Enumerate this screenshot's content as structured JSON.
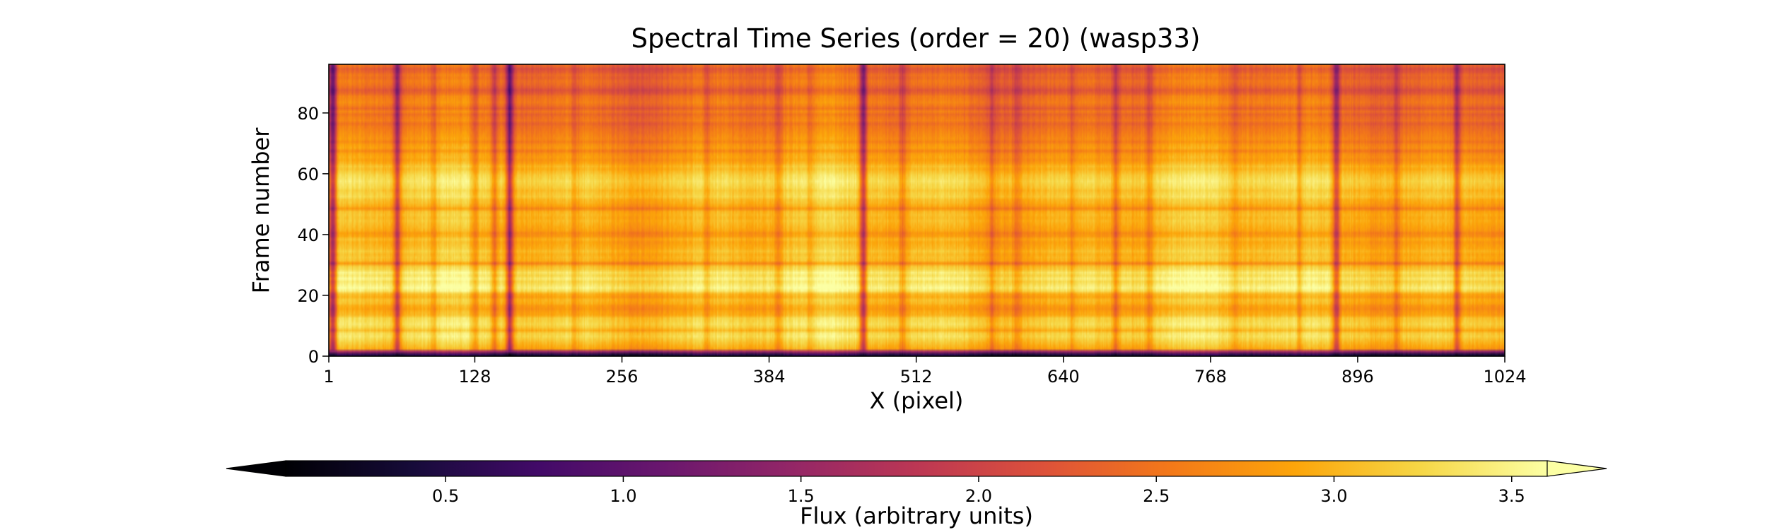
{
  "chart_data": {
    "type": "heatmap",
    "title": "Spectral Time Series (order = 20) (wasp33)",
    "xlabel": "X (pixel)",
    "ylabel": "Frame number",
    "xlim": [
      1,
      1024
    ],
    "ylim": [
      0,
      96
    ],
    "xticks": [
      1,
      128,
      256,
      384,
      512,
      640,
      768,
      896,
      1024
    ],
    "xtick_labels": [
      "1",
      "128",
      "256",
      "384",
      "512",
      "640",
      "768",
      "896",
      "1024"
    ],
    "yticks": [
      0,
      20,
      40,
      60,
      80
    ],
    "ytick_labels": [
      "0",
      "20",
      "40",
      "60",
      "80"
    ],
    "colormap": "inferno",
    "colorbar": {
      "label": "Flux (arbitrary units)",
      "orientation": "horizontal",
      "placement": "bottom",
      "range": [
        0.05,
        3.6
      ],
      "ticks": [
        0.5,
        1.0,
        1.5,
        2.0,
        2.5,
        3.0,
        3.5
      ],
      "tick_labels": [
        "0.5",
        "1.0",
        "1.5",
        "2.0",
        "2.5",
        "3.0",
        "3.5"
      ],
      "extend": "both"
    },
    "frames": 96,
    "pixels": 1024,
    "frame_levels": [
      0.5,
      1.5,
      2.9,
      3.0,
      3.1,
      3.2,
      3.3,
      3.25,
      3.0,
      3.2,
      3.3,
      3.25,
      3.2,
      2.95,
      2.9,
      2.8,
      2.85,
      3.0,
      3.05,
      2.9,
      3.0,
      3.35,
      3.5,
      3.4,
      3.3,
      3.45,
      3.3,
      3.4,
      3.2,
      3.1,
      2.7,
      3.0,
      3.05,
      3.0,
      3.1,
      3.0,
      2.95,
      2.9,
      3.0,
      2.8,
      2.75,
      2.9,
      2.95,
      3.0,
      3.05,
      3.0,
      3.05,
      3.0,
      2.7,
      2.9,
      3.0,
      3.05,
      3.2,
      3.15,
      3.1,
      3.2,
      3.25,
      3.3,
      3.25,
      3.2,
      3.1,
      3.0,
      3.05,
      2.9,
      2.8,
      2.85,
      2.8,
      2.6,
      2.8,
      2.75,
      2.6,
      2.7,
      2.65,
      2.6,
      2.55,
      2.5,
      2.4,
      2.55,
      2.5,
      2.4,
      2.55,
      2.35,
      2.5,
      2.6,
      2.55,
      2.5,
      2.3,
      2.2,
      2.35,
      2.45,
      2.5,
      2.4,
      2.45,
      2.3,
      2.2,
      2.4
    ],
    "absorption_columns": [
      {
        "x": 4,
        "depth": 1.5
      },
      {
        "x": 60,
        "depth": 1.0
      },
      {
        "x": 92,
        "depth": 0.35
      },
      {
        "x": 128,
        "depth": 0.45
      },
      {
        "x": 145,
        "depth": 0.5
      },
      {
        "x": 158,
        "depth": 1.3
      },
      {
        "x": 215,
        "depth": 0.25
      },
      {
        "x": 330,
        "depth": 0.3
      },
      {
        "x": 392,
        "depth": 0.35
      },
      {
        "x": 420,
        "depth": 0.3
      },
      {
        "x": 466,
        "depth": 1.2
      },
      {
        "x": 500,
        "depth": 0.4
      },
      {
        "x": 578,
        "depth": 0.35
      },
      {
        "x": 600,
        "depth": 0.3
      },
      {
        "x": 648,
        "depth": 0.3
      },
      {
        "x": 686,
        "depth": 0.45
      },
      {
        "x": 715,
        "depth": 0.35
      },
      {
        "x": 790,
        "depth": 0.3
      },
      {
        "x": 846,
        "depth": 0.35
      },
      {
        "x": 878,
        "depth": 1.0
      },
      {
        "x": 930,
        "depth": 0.35
      },
      {
        "x": 983,
        "depth": 0.8
      }
    ]
  }
}
